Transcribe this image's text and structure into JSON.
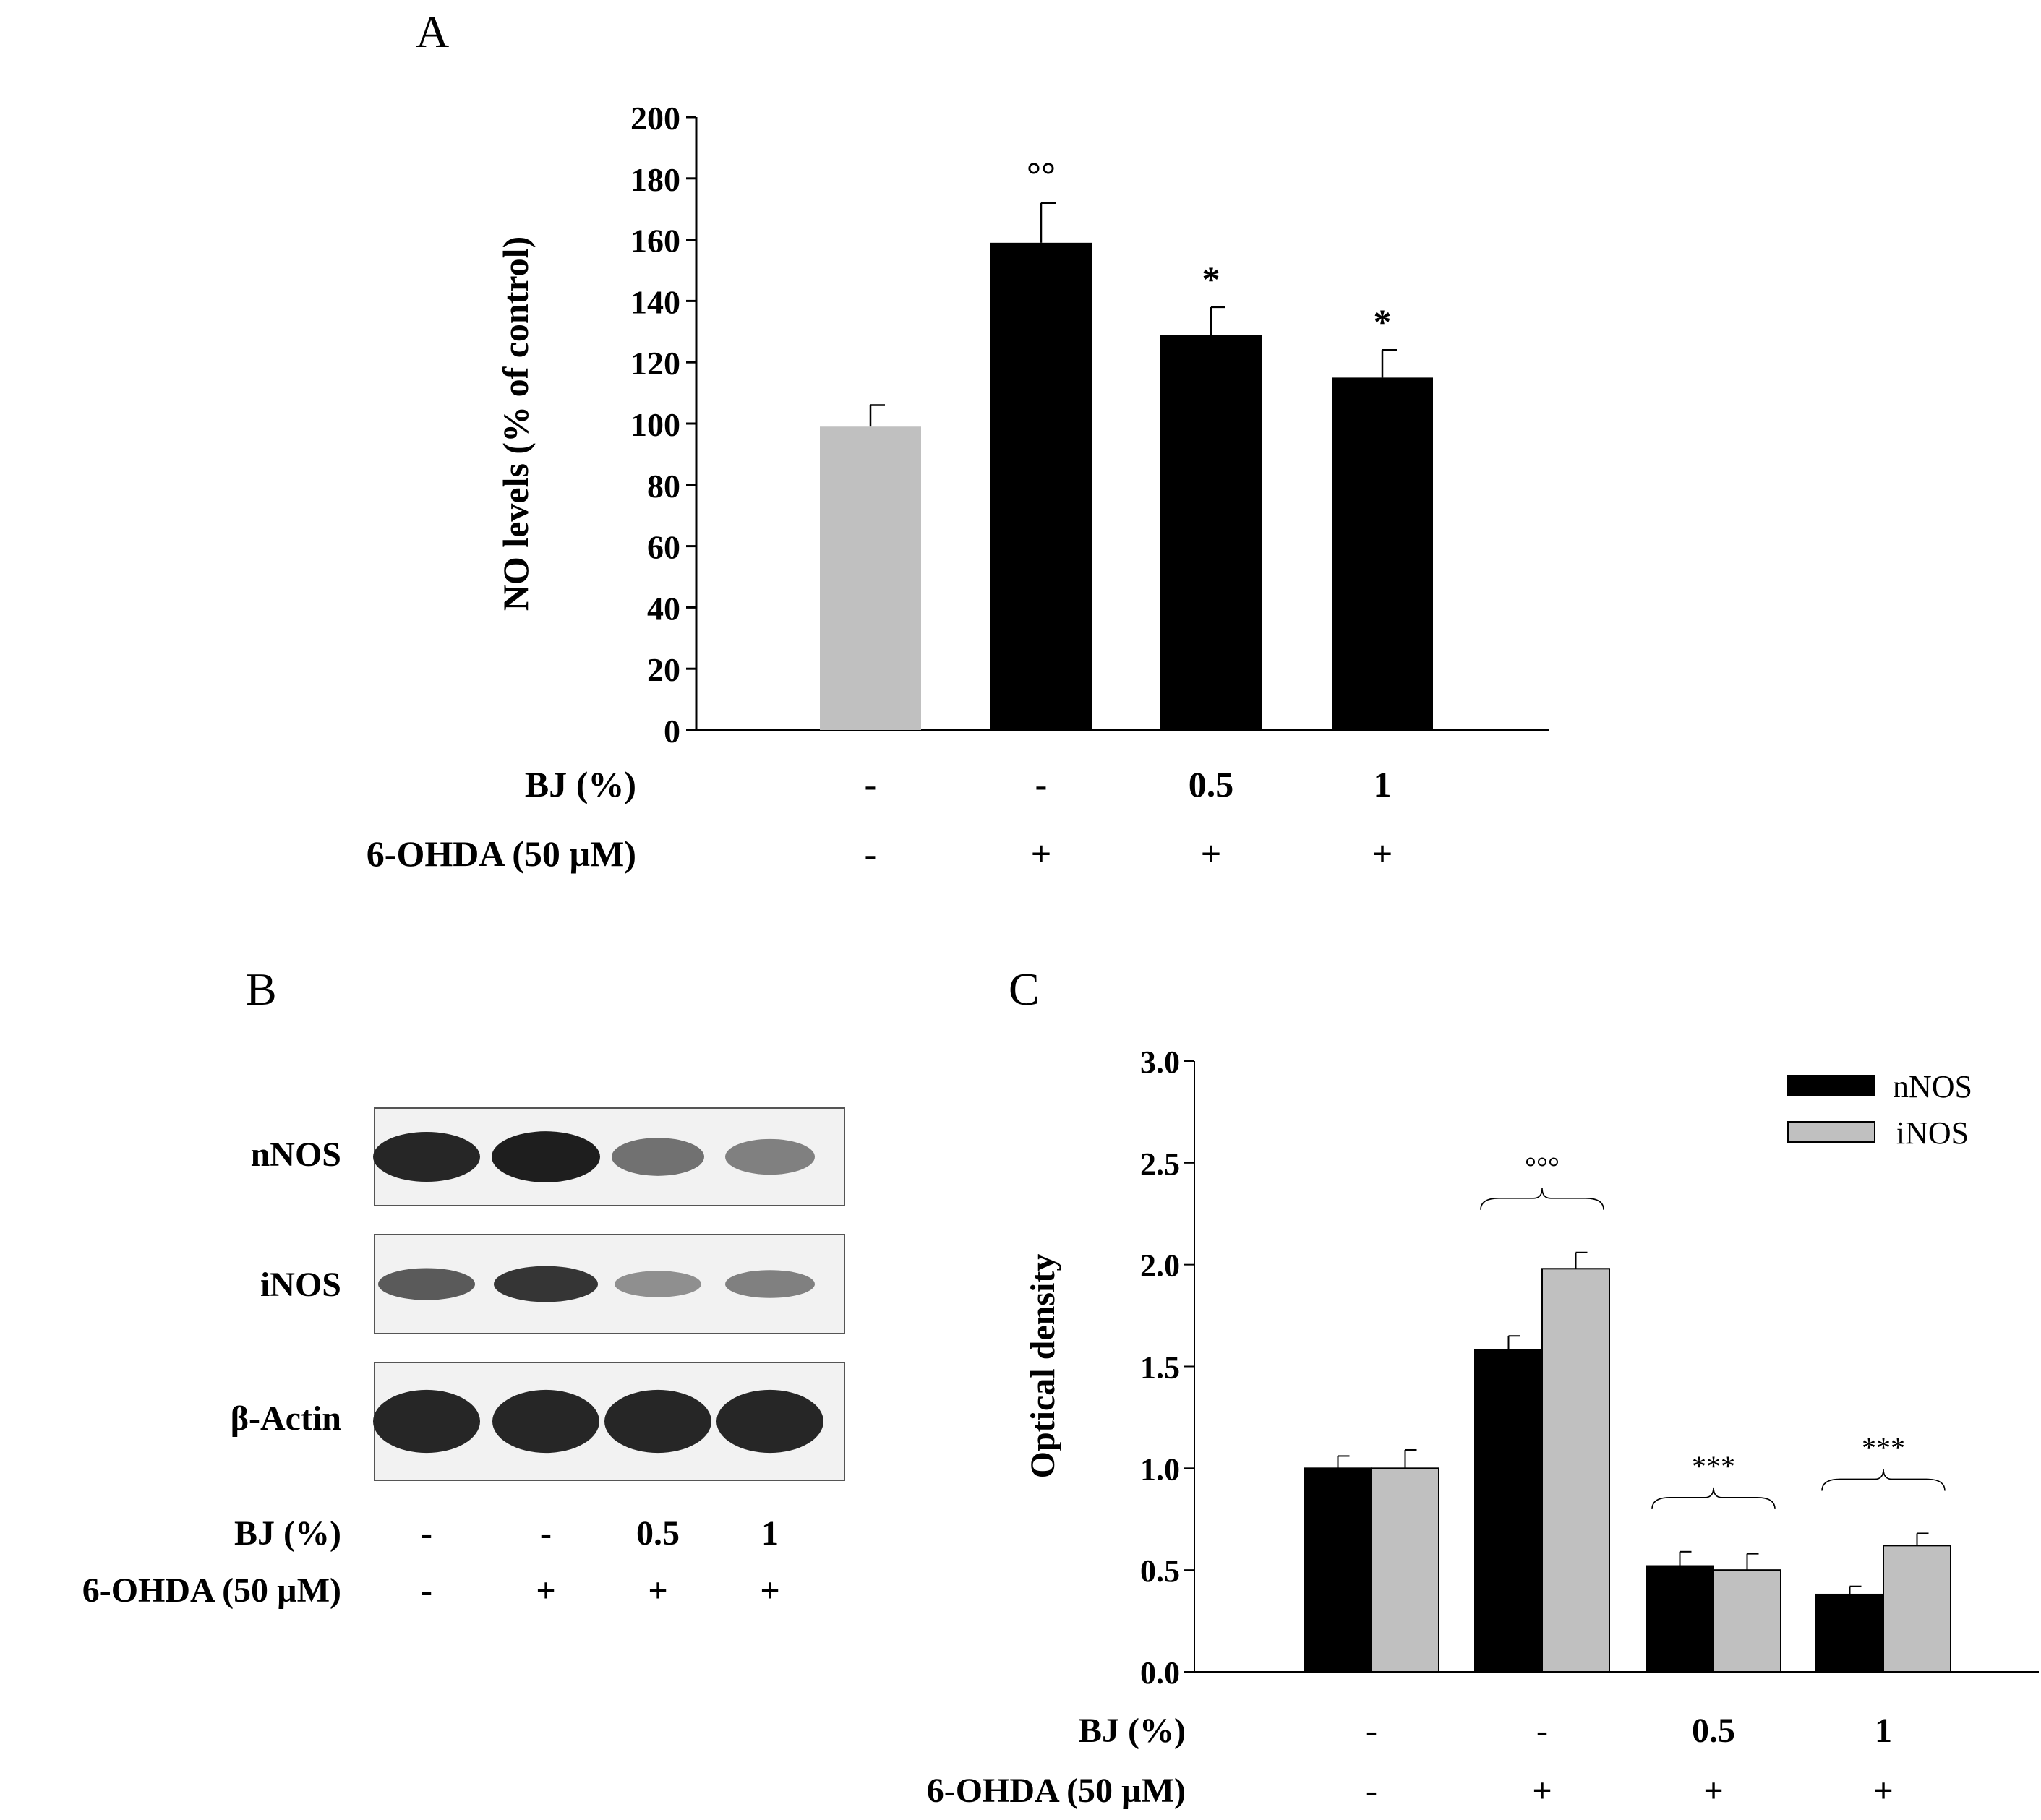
{
  "panels": {
    "a": "A",
    "b": "B",
    "c": "C"
  },
  "colors": {
    "black_bar": "#000000",
    "gray_bar": "#c0c0c0",
    "blot_background": "#f2f2f2",
    "band": "#1a1a1a"
  },
  "chart_data": [
    {
      "id": "A",
      "type": "bar",
      "ylabel": "NO levels (% of control)",
      "ylim": [
        0,
        200
      ],
      "yticks": [
        0,
        20,
        40,
        60,
        80,
        100,
        120,
        140,
        160,
        180,
        200
      ],
      "bars": [
        {
          "value": 99,
          "error": 7,
          "color": "gray",
          "annotation": ""
        },
        {
          "value": 159,
          "error": 13,
          "color": "black",
          "annotation": "°°"
        },
        {
          "value": 129,
          "error": 9,
          "color": "black",
          "annotation": "*"
        },
        {
          "value": 115,
          "error": 9,
          "color": "black",
          "annotation": "*"
        }
      ],
      "conditions": [
        {
          "label": "BJ (%)",
          "values": [
            "-",
            "-",
            "0.5",
            "1"
          ]
        },
        {
          "label": "6-OHDA (50 µM)",
          "values": [
            "-",
            "+",
            "+",
            "+"
          ]
        }
      ]
    },
    {
      "id": "C",
      "type": "bar",
      "ylabel": "Optical density",
      "ylim": [
        0,
        3
      ],
      "yticks": [
        "0.0",
        "0.5",
        "1.0",
        "1.5",
        "2.0",
        "2.5",
        "3.0"
      ],
      "legend": "top-right",
      "series": [
        {
          "name": "nNOS",
          "color": "black",
          "values": [
            1.0,
            1.58,
            0.52,
            0.38
          ],
          "errors": [
            0.06,
            0.07,
            0.07,
            0.04
          ]
        },
        {
          "name": "iNOS",
          "color": "gray",
          "values": [
            1.0,
            1.98,
            0.5,
            0.62
          ],
          "errors": [
            0.09,
            0.08,
            0.08,
            0.06
          ]
        }
      ],
      "group_annotations": [
        "",
        "°°°",
        "***",
        "***"
      ],
      "conditions": [
        {
          "label": "BJ (%)",
          "values": [
            "-",
            "-",
            "0.5",
            "1"
          ]
        },
        {
          "label": "6-OHDA (50 µM)",
          "values": [
            "-",
            "+",
            "+",
            "+"
          ]
        }
      ]
    }
  ],
  "blot": {
    "id": "B",
    "rows": [
      {
        "label": "nNOS",
        "intensities": [
          0.95,
          1.0,
          0.45,
          0.35
        ],
        "band_height": 0.9
      },
      {
        "label": "iNOS",
        "intensities": [
          0.6,
          0.85,
          0.25,
          0.35
        ],
        "band_height": 0.6
      },
      {
        "label": "β-Actin",
        "intensities": [
          0.95,
          0.95,
          0.95,
          0.95
        ],
        "band_height": 1.0
      }
    ],
    "conditions": [
      {
        "label": "BJ (%)",
        "values": [
          "-",
          "-",
          "0.5",
          "1"
        ]
      },
      {
        "label": "6-OHDA (50 µM)",
        "values": [
          "-",
          "+",
          "+",
          "+"
        ]
      }
    ]
  }
}
